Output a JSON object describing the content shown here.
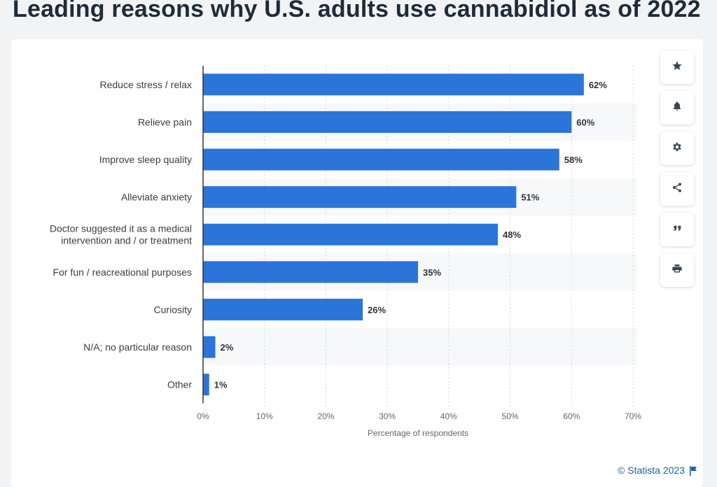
{
  "page_title": "Leading reasons why U.S. adults use cannabidiol as of 2022",
  "credit": "© Statista 2023",
  "toolbar": {
    "buttons": [
      {
        "name": "favorite-button",
        "icon": "star-icon"
      },
      {
        "name": "notification-button",
        "icon": "bell-icon"
      },
      {
        "name": "settings-button",
        "icon": "gear-icon"
      },
      {
        "name": "share-button",
        "icon": "share-icon"
      },
      {
        "name": "cite-button",
        "icon": "quote-icon"
      },
      {
        "name": "print-button",
        "icon": "printer-icon"
      }
    ]
  },
  "colors": {
    "bar": "#2b74d9",
    "band": "#f7f8f9",
    "axis": "#333333",
    "grid": "#d4d8dc"
  },
  "chart_data": {
    "type": "bar",
    "orientation": "horizontal",
    "categories": [
      "Reduce stress / relax",
      "Relieve pain",
      "Improve sleep quality",
      "Alleviate anxiety",
      "Doctor suggested it as a medical intervention and / or treatment",
      "For fun / reacreational purposes",
      "Curiosity",
      "N/A; no particular reason",
      "Other"
    ],
    "category_lines": [
      [
        "Reduce stress / relax"
      ],
      [
        "Relieve pain"
      ],
      [
        "Improve sleep quality"
      ],
      [
        "Alleviate anxiety"
      ],
      [
        "Doctor suggested it as a medical",
        "intervention and / or treatment"
      ],
      [
        "For fun / reacreational purposes"
      ],
      [
        "Curiosity"
      ],
      [
        "N/A; no particular reason"
      ],
      [
        "Other"
      ]
    ],
    "values": [
      62,
      60,
      58,
      51,
      48,
      35,
      26,
      2,
      1
    ],
    "value_labels": [
      "62%",
      "60%",
      "58%",
      "51%",
      "48%",
      "35%",
      "26%",
      "2%",
      "1%"
    ],
    "xlim": [
      0,
      70
    ],
    "x_ticks": [
      0,
      10,
      20,
      30,
      40,
      50,
      60,
      70
    ],
    "x_tick_labels": [
      "0%",
      "10%",
      "20%",
      "30%",
      "40%",
      "50%",
      "60%",
      "70%"
    ],
    "xlabel": "Percentage of respondents",
    "ylabel": "",
    "grid": "vertical dotted",
    "legend": "none"
  }
}
